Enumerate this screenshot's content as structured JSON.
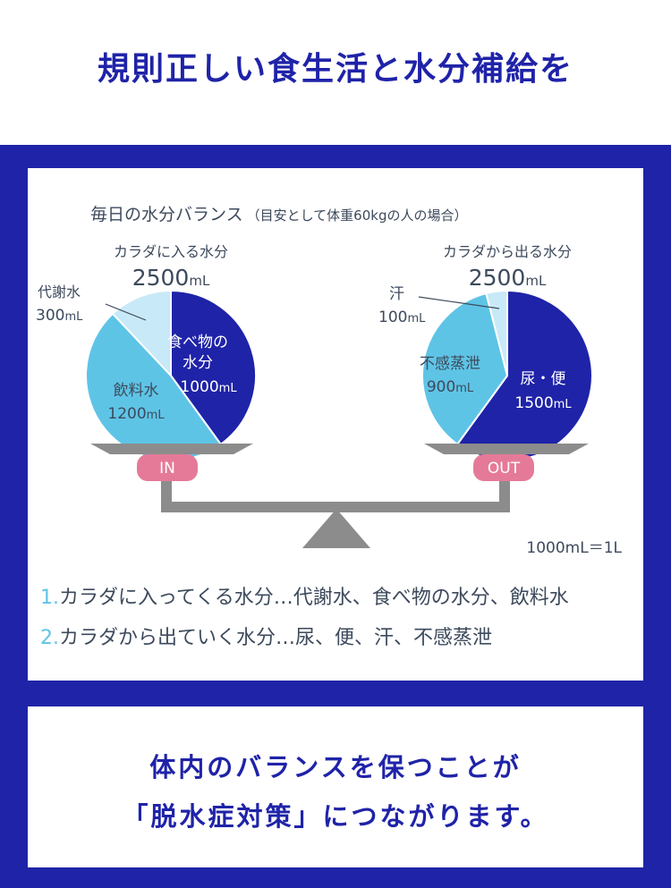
{
  "title": "規則正しい食生活と水分補給を",
  "diagram": {
    "heading": "毎日の水分バランス",
    "heading_note": "（目安として体重60kgの人の場合）",
    "in": {
      "label": "カラダに入る水分",
      "total": "2500",
      "unit": "mL",
      "badge": "IN",
      "segments": [
        {
          "name": "代謝水",
          "value": 300,
          "value_label": "300",
          "unit": "mL",
          "color": "#c8e9f7"
        },
        {
          "name": "食べ物の水分",
          "name_l1": "食べ物の",
          "name_l2": "水分",
          "value": 1000,
          "value_label": "1000",
          "unit": "mL",
          "color": "#1f23a8"
        },
        {
          "name": "飲料水",
          "value": 1200,
          "value_label": "1200",
          "unit": "mL",
          "color": "#5ec4e6"
        }
      ]
    },
    "out": {
      "label": "カラダから出る水分",
      "total": "2500",
      "unit": "mL",
      "badge": "OUT",
      "segments": [
        {
          "name": "尿・便",
          "value": 1500,
          "value_label": "1500",
          "unit": "mL",
          "color": "#1f23a8"
        },
        {
          "name": "不感蒸泄",
          "value": 900,
          "value_label": "900",
          "unit": "mL",
          "color": "#5ec4e6"
        },
        {
          "name": "汗",
          "value": 100,
          "value_label": "100",
          "unit": "mL",
          "color": "#c8e9f7"
        }
      ]
    },
    "unit_note": "1000mL＝1L",
    "items": [
      {
        "num": "1.",
        "text": "カラダに入ってくる水分…代謝水、食べ物の水分、飲料水"
      },
      {
        "num": "2.",
        "text": "カラダから出ていく水分…尿、便、汗、不感蒸泄"
      }
    ],
    "colors": {
      "navy": "#1f23a8",
      "sky": "#5ec4e6",
      "pale": "#c8e9f7",
      "scale_gray": "#8c8c8c",
      "badge_pink": "#e57a98"
    }
  },
  "message": {
    "line1": "体内のバランスを保つことが",
    "line2": "「脱水症対策」につながります。"
  }
}
